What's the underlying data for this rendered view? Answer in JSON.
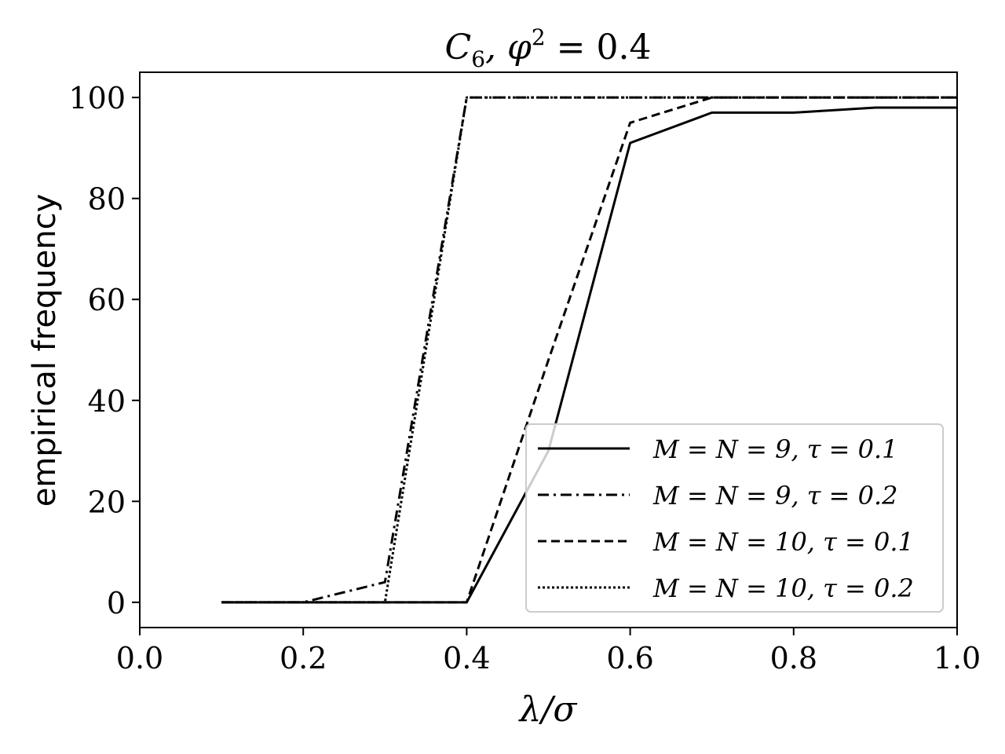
{
  "chart_data": {
    "type": "line",
    "title": "C_6,  φ² = 0.4",
    "xlabel": "λ/σ",
    "ylabel": "empirical frequency",
    "xlim": [
      0.0,
      1.0
    ],
    "ylim": [
      -5,
      105
    ],
    "x_ticks": [
      0.0,
      0.2,
      0.4,
      0.6,
      0.8,
      1.0
    ],
    "x_tick_labels": [
      "0.0",
      "0.2",
      "0.4",
      "0.6",
      "0.8",
      "1.0"
    ],
    "y_ticks": [
      0,
      20,
      40,
      60,
      80,
      100
    ],
    "y_tick_labels": [
      "0",
      "20",
      "40",
      "60",
      "80",
      "100"
    ],
    "grid": false,
    "legend_position": "lower right",
    "x": [
      0.1,
      0.2,
      0.3,
      0.4,
      0.5,
      0.6,
      0.7,
      0.8,
      0.9,
      1.0
    ],
    "series": [
      {
        "name": "M = N = 9, τ = 0.1",
        "style": "solid",
        "values": [
          0,
          0,
          0,
          0,
          30,
          91,
          97,
          97,
          98,
          98
        ]
      },
      {
        "name": "M = N = 9, τ = 0.2",
        "style": "dashdot",
        "values": [
          0,
          0,
          4,
          100,
          100,
          100,
          100,
          100,
          100,
          100
        ]
      },
      {
        "name": "M = N = 10, τ = 0.1",
        "style": "dashed",
        "values": [
          0,
          0,
          0,
          0,
          48,
          95,
          100,
          100,
          100,
          100
        ]
      },
      {
        "name": "M = N = 10, τ = 0.2",
        "style": "dotted",
        "values": [
          0,
          0,
          0,
          100,
          100,
          100,
          100,
          100,
          100,
          100
        ]
      }
    ]
  },
  "title": {
    "main": "C",
    "sub": "6",
    "rest_prefix": ",  φ",
    "sup": "2",
    "rest_suffix": " = 0.4"
  },
  "axes": {
    "xlabel": "λ/σ",
    "ylabel": "empirical frequency"
  },
  "legend": {
    "items": [
      {
        "label": "M = N = 9, τ = 0.1",
        "style": "solid"
      },
      {
        "label": "M = N = 9, τ = 0.2",
        "style": "dashdot"
      },
      {
        "label": "M = N = 10, τ = 0.1",
        "style": "dashed"
      },
      {
        "label": "M = N = 10, τ = 0.2",
        "style": "dotted"
      }
    ]
  },
  "colors": {
    "line": "#000000",
    "legend_border": "#cccccc",
    "background": "#ffffff"
  }
}
